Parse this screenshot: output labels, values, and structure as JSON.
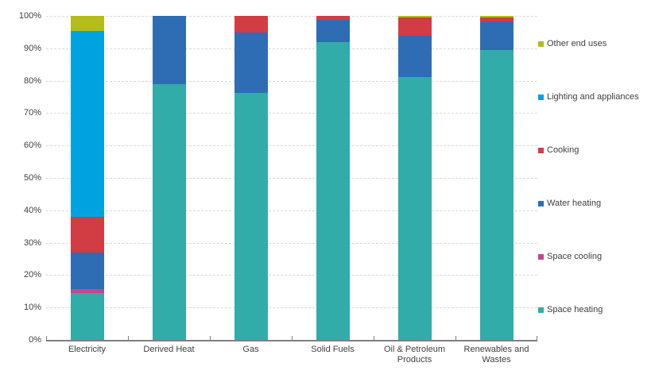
{
  "page": {
    "background": "#ffffff",
    "title": ""
  },
  "chart_data": {
    "type": "bar",
    "stacked": true,
    "percent_stacked": true,
    "title": "",
    "xlabel": "",
    "ylabel": "",
    "ylim": [
      0,
      100
    ],
    "grid": "horizontal-dashed",
    "y_ticks": [
      "100%",
      "90%",
      "80%",
      "70%",
      "60%",
      "50%",
      "40%",
      "30%",
      "20%",
      "10%",
      "0%"
    ],
    "categories": [
      "Electricity",
      "Derived Heat",
      "Gas",
      "Solid Fuels",
      "Oil & Petroleum Products",
      "Renewables and Wastes"
    ],
    "series": [
      {
        "name": "Space heating",
        "color": "#31aca8",
        "values": [
          14.5,
          78.9,
          76.2,
          91.9,
          81.2,
          89.4
        ]
      },
      {
        "name": "Space cooling",
        "color": "#c5458e",
        "values": [
          1.2,
          0,
          0,
          0,
          0,
          0
        ]
      },
      {
        "name": "Water heating",
        "color": "#2e6db4",
        "values": [
          11.3,
          21.1,
          18.7,
          6.9,
          12.8,
          8.8
        ]
      },
      {
        "name": "Cooking",
        "color": "#d23c43",
        "values": [
          11.1,
          0,
          5.1,
          1.2,
          5.5,
          1.3
        ]
      },
      {
        "name": "Lighting and appliances",
        "color": "#00a3e0",
        "values": [
          57.2,
          0,
          0,
          0,
          0,
          0
        ]
      },
      {
        "name": "Other end uses",
        "color": "#b3bc1a",
        "values": [
          4.7,
          0,
          0,
          0,
          0.5,
          0.5
        ]
      }
    ],
    "legend": {
      "position": "right",
      "items": [
        "Other end uses",
        "Lighting and appliances",
        "Cooking",
        "Water heating",
        "Space cooling",
        "Space heating"
      ]
    }
  },
  "style_colors": {
    "gridline": "#d9d9d9",
    "axis": "#7f7f7f",
    "text": "#3f3f3f"
  }
}
